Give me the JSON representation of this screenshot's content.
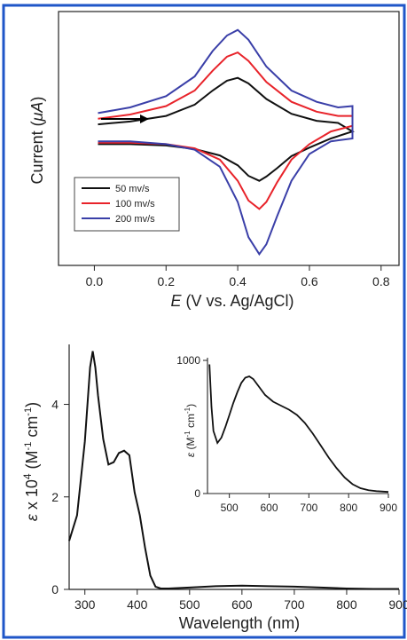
{
  "chart_data": [
    {
      "type": "line",
      "title": "",
      "ylabel_prefix": "Current (",
      "ylabel_unit": "μA",
      "ylabel_suffix": ")",
      "xlabel_var": "E",
      "xlabel_rest": " (V vs. Ag/AgCl)",
      "xlim": [
        -0.1,
        0.85
      ],
      "xticks": [
        "0.0",
        "0.2",
        "0.4",
        "0.6",
        "0.8"
      ],
      "xtick_values": [
        0.0,
        0.2,
        0.4,
        0.6,
        0.8
      ],
      "yticks": [],
      "grid": false,
      "legend_position": "lower-left",
      "annotation": "arrow pointing right (scan direction)",
      "series": [
        {
          "name": "50 mv/s",
          "color": "#111111",
          "forward_x": [
            0.01,
            0.1,
            0.2,
            0.28,
            0.33,
            0.37,
            0.4,
            0.43,
            0.48,
            0.55,
            0.62,
            0.68,
            0.72
          ],
          "forward_y": [
            0.4,
            0.44,
            0.52,
            0.68,
            0.88,
            1.02,
            1.06,
            0.98,
            0.76,
            0.55,
            0.45,
            0.42,
            0.3
          ],
          "reverse_x": [
            0.72,
            0.66,
            0.6,
            0.55,
            0.51,
            0.48,
            0.46,
            0.43,
            0.4,
            0.35,
            0.28,
            0.2,
            0.1,
            0.01
          ],
          "reverse_y": [
            0.3,
            0.2,
            0.07,
            -0.05,
            -0.22,
            -0.34,
            -0.4,
            -0.33,
            -0.18,
            -0.04,
            0.05,
            0.1,
            0.12,
            0.12
          ]
        },
        {
          "name": "100 mv/s",
          "color": "#e8232a",
          "forward_x": [
            0.01,
            0.1,
            0.2,
            0.28,
            0.33,
            0.37,
            0.4,
            0.43,
            0.48,
            0.55,
            0.62,
            0.68,
            0.72
          ],
          "forward_y": [
            0.48,
            0.54,
            0.66,
            0.88,
            1.16,
            1.36,
            1.42,
            1.3,
            1.0,
            0.72,
            0.58,
            0.52,
            0.52
          ],
          "reverse_x": [
            0.72,
            0.66,
            0.6,
            0.55,
            0.51,
            0.48,
            0.46,
            0.43,
            0.4,
            0.35,
            0.28,
            0.2,
            0.1,
            0.01
          ],
          "reverse_y": [
            0.38,
            0.3,
            0.12,
            -0.1,
            -0.42,
            -0.7,
            -0.8,
            -0.68,
            -0.4,
            -0.1,
            0.06,
            0.12,
            0.14,
            0.14
          ]
        },
        {
          "name": "200 mv/s",
          "color": "#3a3fa8",
          "forward_x": [
            0.01,
            0.1,
            0.2,
            0.28,
            0.33,
            0.37,
            0.4,
            0.43,
            0.48,
            0.55,
            0.62,
            0.68,
            0.72
          ],
          "forward_y": [
            0.56,
            0.64,
            0.8,
            1.08,
            1.44,
            1.66,
            1.74,
            1.6,
            1.22,
            0.88,
            0.72,
            0.64,
            0.66
          ],
          "reverse_x": [
            0.72,
            0.66,
            0.6,
            0.55,
            0.51,
            0.48,
            0.46,
            0.43,
            0.4,
            0.35,
            0.28,
            0.2,
            0.1,
            0.01
          ],
          "reverse_y": [
            0.2,
            0.16,
            -0.02,
            -0.4,
            -0.9,
            -1.3,
            -1.44,
            -1.2,
            -0.7,
            -0.2,
            0.04,
            0.12,
            0.16,
            0.16
          ]
        }
      ]
    },
    {
      "type": "line",
      "title": "",
      "ylabel_var": "ε",
      "ylabel_rest": " x 10",
      "ylabel_sup": "4",
      "ylabel_unit": " (M",
      "ylabel_unit_sup1": "-1",
      "ylabel_unit_mid": " cm",
      "ylabel_unit_sup2": "-1",
      "ylabel_unit_end": ")",
      "xlabel": "Wavelength (nm)",
      "xlim": [
        270,
        900
      ],
      "ylim": [
        0,
        5.2
      ],
      "xticks": [
        "300",
        "400",
        "500",
        "600",
        "700",
        "800",
        "900"
      ],
      "xtick_values": [
        300,
        400,
        500,
        600,
        700,
        800,
        900
      ],
      "yticks": [
        "0",
        "2",
        "4"
      ],
      "ytick_values": [
        0,
        2,
        4
      ],
      "grid": false,
      "series": [
        {
          "name": "",
          "color": "#111111",
          "x": [
            270,
            285,
            300,
            310,
            315,
            320,
            325,
            335,
            345,
            355,
            365,
            375,
            385,
            395,
            405,
            415,
            425,
            435,
            445,
            460,
            500,
            550,
            600,
            650,
            700,
            750,
            800,
            850,
            900
          ],
          "y": [
            1.05,
            1.6,
            3.2,
            4.8,
            5.15,
            4.8,
            4.2,
            3.25,
            2.7,
            2.75,
            2.95,
            3.0,
            2.9,
            2.1,
            1.6,
            0.9,
            0.3,
            0.06,
            0.02,
            0.02,
            0.04,
            0.07,
            0.08,
            0.07,
            0.06,
            0.04,
            0.02,
            0.01,
            0.01
          ]
        }
      ]
    },
    {
      "type": "line",
      "title": "",
      "inset": true,
      "ylabel_var": "ε",
      "ylabel_unit": " (M",
      "ylabel_unit_sup1": "-1",
      "ylabel_unit_mid": " cm",
      "ylabel_unit_sup2": "-1",
      "ylabel_unit_end": ")",
      "xlabel": "",
      "xlim": [
        445,
        900
      ],
      "ylim": [
        0,
        1000
      ],
      "xticks": [
        "500",
        "600",
        "700",
        "800",
        "900"
      ],
      "xtick_values": [
        500,
        600,
        700,
        800,
        900
      ],
      "yticks": [
        "0",
        "1000"
      ],
      "ytick_values": [
        0,
        1000
      ],
      "grid": false,
      "series": [
        {
          "name": "",
          "color": "#111111",
          "x": [
            450,
            455,
            460,
            470,
            480,
            490,
            500,
            510,
            520,
            530,
            540,
            550,
            560,
            575,
            590,
            610,
            630,
            650,
            670,
            690,
            710,
            730,
            750,
            770,
            790,
            810,
            830,
            850,
            870,
            900
          ],
          "y": [
            970,
            650,
            470,
            380,
            420,
            500,
            590,
            680,
            760,
            830,
            870,
            880,
            860,
            800,
            740,
            690,
            660,
            630,
            590,
            530,
            450,
            360,
            270,
            190,
            120,
            70,
            40,
            25,
            18,
            12
          ]
        }
      ]
    }
  ]
}
